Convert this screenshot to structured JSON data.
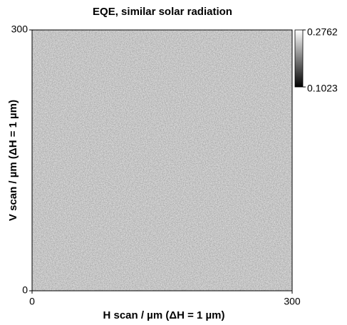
{
  "chart_data": {
    "type": "heatmap",
    "title": "EQE, similar solar radiation",
    "xlabel": "H scan / µm (ΔH = 1 µm)",
    "ylabel": "V scan / µm (ΔH = 1 µm)",
    "xlim": [
      0,
      300
    ],
    "ylim": [
      0,
      300
    ],
    "xticks": [
      0,
      300
    ],
    "yticks": [
      0,
      300
    ],
    "colormap": "gray",
    "clim": [
      0.1023,
      0.2762
    ],
    "cticks": [
      0.1023,
      0.2762
    ]
  }
}
